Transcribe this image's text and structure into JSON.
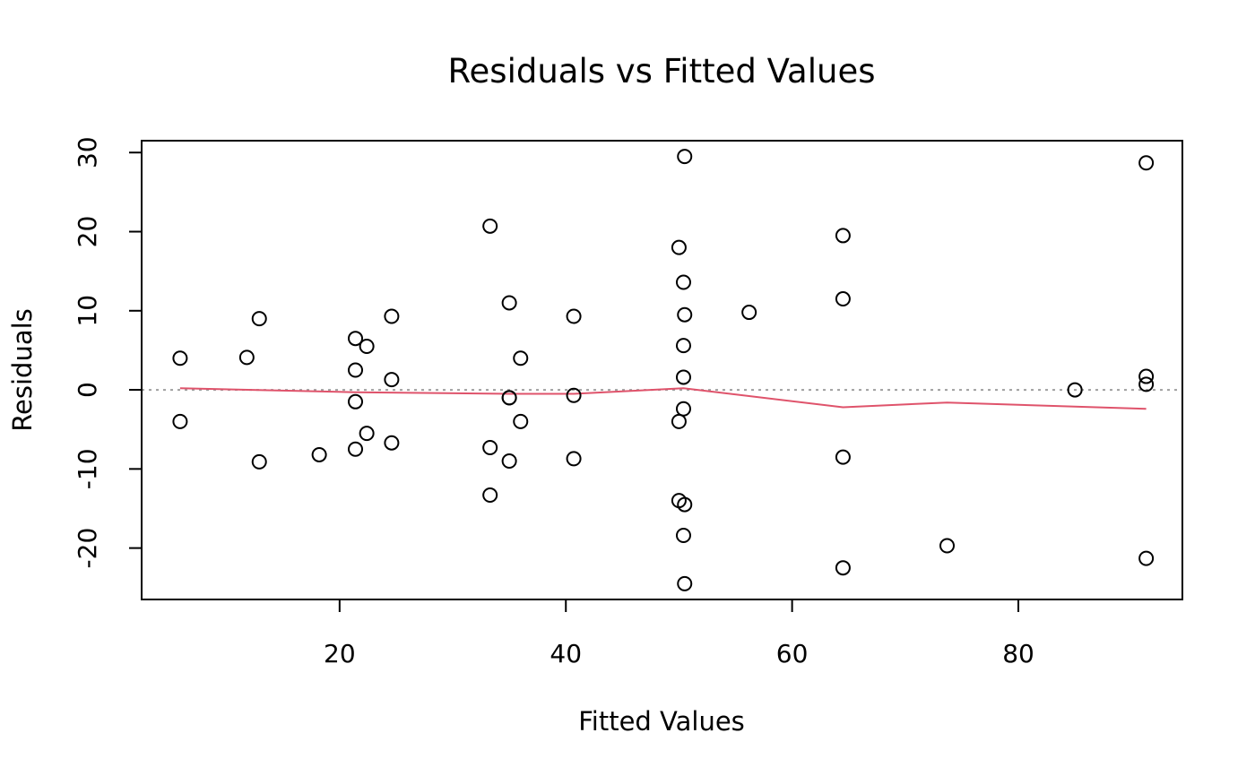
{
  "chart_data": {
    "type": "scatter",
    "title": "Residuals vs Fitted Values",
    "xlabel": "Fitted Values",
    "ylabel": "Residuals",
    "xlim": [
      2.5,
      94.5
    ],
    "ylim": [
      -26.5,
      31.5
    ],
    "xticks": [
      20,
      40,
      60,
      80
    ],
    "yticks": [
      -20,
      -10,
      0,
      10,
      20,
      30
    ],
    "grid": false,
    "legend": "none",
    "reference_line": {
      "y": 0,
      "style": "dotted",
      "color": "#9e9e9e"
    },
    "smooth_color": "#df536b",
    "point_color": "#000000",
    "points": [
      {
        "x": 5.9,
        "y": 4.0
      },
      {
        "x": 5.9,
        "y": -4.0
      },
      {
        "x": 11.8,
        "y": 4.1
      },
      {
        "x": 12.9,
        "y": 9.0
      },
      {
        "x": 12.9,
        "y": -9.1
      },
      {
        "x": 18.2,
        "y": -8.2
      },
      {
        "x": 21.4,
        "y": 6.5
      },
      {
        "x": 21.4,
        "y": 2.5
      },
      {
        "x": 21.4,
        "y": -1.5
      },
      {
        "x": 21.4,
        "y": -7.5
      },
      {
        "x": 22.4,
        "y": 5.5
      },
      {
        "x": 22.4,
        "y": -5.5
      },
      {
        "x": 24.6,
        "y": 9.3
      },
      {
        "x": 24.6,
        "y": 1.3
      },
      {
        "x": 24.6,
        "y": -6.7
      },
      {
        "x": 33.3,
        "y": 20.7
      },
      {
        "x": 33.3,
        "y": -7.3
      },
      {
        "x": 33.3,
        "y": -13.3
      },
      {
        "x": 35.0,
        "y": 11.0
      },
      {
        "x": 35.0,
        "y": -1.0
      },
      {
        "x": 35.0,
        "y": -1.0
      },
      {
        "x": 35.0,
        "y": -9.0
      },
      {
        "x": 36.0,
        "y": 4.0
      },
      {
        "x": 36.0,
        "y": -4.0
      },
      {
        "x": 40.7,
        "y": 9.3
      },
      {
        "x": 40.7,
        "y": -0.7
      },
      {
        "x": 40.7,
        "y": -8.7
      },
      {
        "x": 50.0,
        "y": 18.0
      },
      {
        "x": 50.0,
        "y": -4.0
      },
      {
        "x": 50.0,
        "y": -14.0
      },
      {
        "x": 50.4,
        "y": 13.6
      },
      {
        "x": 50.4,
        "y": 5.6
      },
      {
        "x": 50.4,
        "y": 1.6
      },
      {
        "x": 50.4,
        "y": -2.4
      },
      {
        "x": 50.4,
        "y": -18.4
      },
      {
        "x": 50.5,
        "y": 29.5
      },
      {
        "x": 50.5,
        "y": 9.5
      },
      {
        "x": 50.5,
        "y": -14.5
      },
      {
        "x": 50.5,
        "y": -24.5
      },
      {
        "x": 56.2,
        "y": 9.8
      },
      {
        "x": 64.5,
        "y": 19.5
      },
      {
        "x": 64.5,
        "y": 11.5
      },
      {
        "x": 64.5,
        "y": -8.5
      },
      {
        "x": 64.5,
        "y": -22.5
      },
      {
        "x": 73.7,
        "y": -19.7
      },
      {
        "x": 85.0,
        "y": 0.0
      },
      {
        "x": 91.3,
        "y": 28.7
      },
      {
        "x": 91.3,
        "y": 1.7
      },
      {
        "x": 91.3,
        "y": 0.7
      },
      {
        "x": 91.3,
        "y": -21.3
      }
    ],
    "smooth": [
      {
        "x": 5.9,
        "y": 0.2
      },
      {
        "x": 21.4,
        "y": -0.3
      },
      {
        "x": 35.0,
        "y": -0.5
      },
      {
        "x": 40.7,
        "y": -0.5
      },
      {
        "x": 50.4,
        "y": 0.2
      },
      {
        "x": 64.5,
        "y": -2.2
      },
      {
        "x": 73.7,
        "y": -1.6
      },
      {
        "x": 91.3,
        "y": -2.4
      }
    ]
  }
}
